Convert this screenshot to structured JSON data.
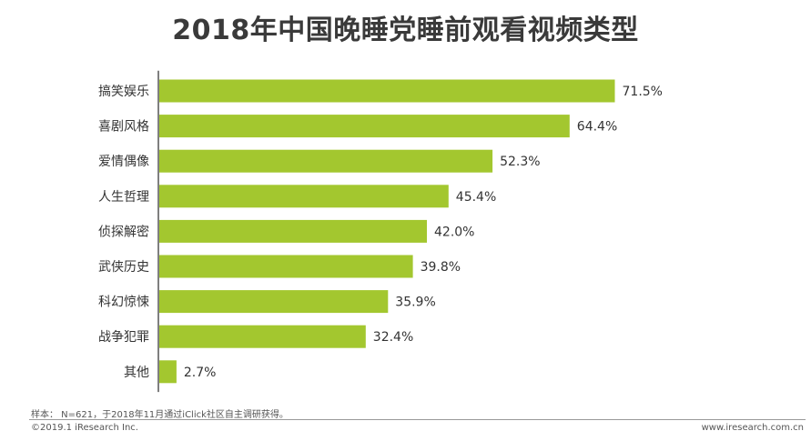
{
  "chart_data": {
    "type": "bar",
    "orientation": "horizontal",
    "title": "2018年中国晚睡党睡前观看视频类型",
    "categories": [
      "搞笑娱乐",
      "喜剧风格",
      "爱情偶像",
      "人生哲理",
      "侦探解密",
      "武侠历史",
      "科幻惊悚",
      "战争犯罪",
      "其他"
    ],
    "values": [
      71.5,
      64.4,
      52.3,
      45.4,
      42.0,
      39.8,
      35.9,
      32.4,
      2.7
    ],
    "value_labels": [
      "71.5%",
      "64.4%",
      "52.3%",
      "45.4%",
      "42.0%",
      "39.8%",
      "35.9%",
      "32.4%",
      "2.7%"
    ],
    "unit": "%",
    "bar_color": "#a3c72f",
    "grid": false,
    "legend": "none"
  },
  "footer": {
    "note": "样本： N=621，于2018年11月通过iClick社区自主调研获得。",
    "copyright": "©2019.1 iResearch Inc.",
    "website": "www.iresearch.com.cn"
  }
}
